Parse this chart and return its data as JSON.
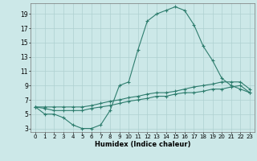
{
  "line1_x": [
    0,
    1,
    2,
    3,
    4,
    5,
    6,
    7,
    8,
    9,
    10,
    11,
    12,
    13,
    14,
    15,
    16,
    17,
    18,
    19,
    20,
    21,
    22,
    23
  ],
  "line1_y": [
    6,
    5,
    5,
    4.5,
    3.5,
    3,
    3,
    3.5,
    5.5,
    9,
    9.5,
    14,
    18,
    19,
    19.5,
    20,
    19.5,
    17.5,
    14.5,
    12.5,
    10,
    9,
    8.5,
    8
  ],
  "line2_x": [
    0,
    1,
    2,
    3,
    4,
    5,
    6,
    7,
    8,
    9,
    10,
    11,
    12,
    13,
    14,
    15,
    16,
    17,
    18,
    19,
    20,
    21,
    22,
    23
  ],
  "line2_y": [
    6,
    6,
    6,
    6,
    6,
    6,
    6.2,
    6.5,
    6.8,
    7,
    7.3,
    7.5,
    7.8,
    8,
    8,
    8.2,
    8.5,
    8.8,
    9,
    9.2,
    9.5,
    9.5,
    9.5,
    8.5
  ],
  "line3_x": [
    0,
    1,
    2,
    3,
    4,
    5,
    6,
    7,
    8,
    9,
    10,
    11,
    12,
    13,
    14,
    15,
    16,
    17,
    18,
    19,
    20,
    21,
    22,
    23
  ],
  "line3_y": [
    6,
    5.8,
    5.5,
    5.5,
    5.5,
    5.5,
    5.8,
    6,
    6.2,
    6.5,
    6.8,
    7,
    7.2,
    7.5,
    7.5,
    7.8,
    8,
    8,
    8.2,
    8.5,
    8.5,
    8.8,
    9,
    8
  ],
  "color": "#2e7d6e",
  "bg_color": "#cce8e8",
  "grid_color": "#aed0d0",
  "xlabel": "Humidex (Indice chaleur)",
  "xlim": [
    -0.5,
    23.5
  ],
  "ylim": [
    2.5,
    20.5
  ],
  "xticks": [
    0,
    1,
    2,
    3,
    4,
    5,
    6,
    7,
    8,
    9,
    10,
    11,
    12,
    13,
    14,
    15,
    16,
    17,
    18,
    19,
    20,
    21,
    22,
    23
  ],
  "yticks": [
    3,
    5,
    7,
    9,
    11,
    13,
    15,
    17,
    19
  ]
}
